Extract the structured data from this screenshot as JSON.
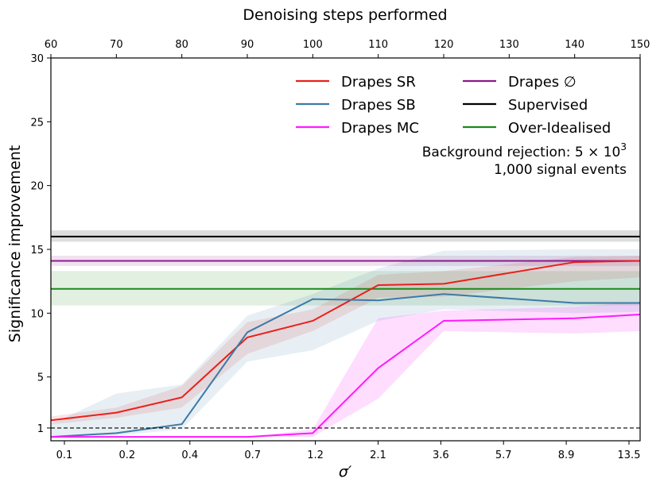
{
  "chart_data": {
    "type": "line",
    "top_axis_label": "Denoising steps performed",
    "xlabel": "σ′",
    "ylabel": "Significance improvement",
    "bottom_ticks": [
      "0.1",
      "0.2",
      "0.4",
      "0.7",
      "1.2",
      "2.1",
      "3.6",
      "5.7",
      "8.9",
      "13.5"
    ],
    "top_ticks": [
      "60",
      "70",
      "80",
      "90",
      "100",
      "110",
      "120",
      "130",
      "140",
      "150"
    ],
    "y_ticks": [
      1,
      5,
      10,
      15,
      20,
      25,
      30
    ],
    "ylim": [
      0,
      30
    ],
    "step_range": [
      60,
      150
    ],
    "reference_line": {
      "y": 1,
      "style": "dashed",
      "color": "#000000"
    },
    "series": [
      {
        "name": "Drapes SR",
        "color": "#e8201c",
        "steps": [
          60,
          70,
          80,
          90,
          100,
          110,
          120,
          140,
          150
        ],
        "values": [
          1.6,
          2.2,
          3.4,
          8.1,
          9.4,
          12.2,
          12.3,
          14.0,
          14.1
        ],
        "lower": [
          1.3,
          1.8,
          2.6,
          6.8,
          8.6,
          11.2,
          11.3,
          12.5,
          12.8
        ],
        "upper": [
          1.9,
          2.6,
          4.3,
          9.3,
          10.3,
          13.0,
          13.3,
          14.4,
          14.5
        ]
      },
      {
        "name": "Drapes SB",
        "color": "#3d7aa6",
        "steps": [
          60,
          70,
          80,
          90,
          100,
          110,
          120,
          140,
          150
        ],
        "values": [
          0.3,
          0.6,
          1.3,
          8.5,
          11.1,
          11.0,
          11.5,
          10.8,
          10.8
        ],
        "lower": [
          0.2,
          0.4,
          0.9,
          6.2,
          7.1,
          9.4,
          10.3,
          10.0,
          10.1
        ],
        "upper": [
          1.3,
          3.7,
          4.4,
          9.8,
          11.5,
          13.5,
          14.9,
          15.0,
          15.0
        ]
      },
      {
        "name": "Drapes MC",
        "color": "#ff1aff",
        "steps": [
          60,
          70,
          80,
          90,
          100,
          110,
          120,
          140,
          150
        ],
        "values": [
          0.3,
          0.3,
          0.3,
          0.3,
          0.6,
          5.7,
          9.4,
          9.6,
          9.9
        ],
        "lower": [
          0.3,
          0.3,
          0.3,
          0.3,
          0.3,
          3.3,
          8.6,
          8.4,
          8.6
        ],
        "upper": [
          0.3,
          0.3,
          0.3,
          0.3,
          0.9,
          9.6,
          10.2,
          10.5,
          10.9
        ]
      },
      {
        "name": "Drapes ∅",
        "color": "#8b1a8b",
        "constant": 14.1,
        "band": [
          13.7,
          14.5
        ]
      },
      {
        "name": "Supervised",
        "color": "#000000",
        "constant": 16.0,
        "band": [
          15.6,
          16.5
        ]
      },
      {
        "name": "Over-Idealised",
        "color": "#1a8a1a",
        "constant": 11.9,
        "band": [
          10.6,
          13.3
        ]
      }
    ],
    "annotation": [
      "Background rejection: 5 × 10",
      "3",
      "1,000 signal events"
    ],
    "legend_position": "top-right"
  }
}
